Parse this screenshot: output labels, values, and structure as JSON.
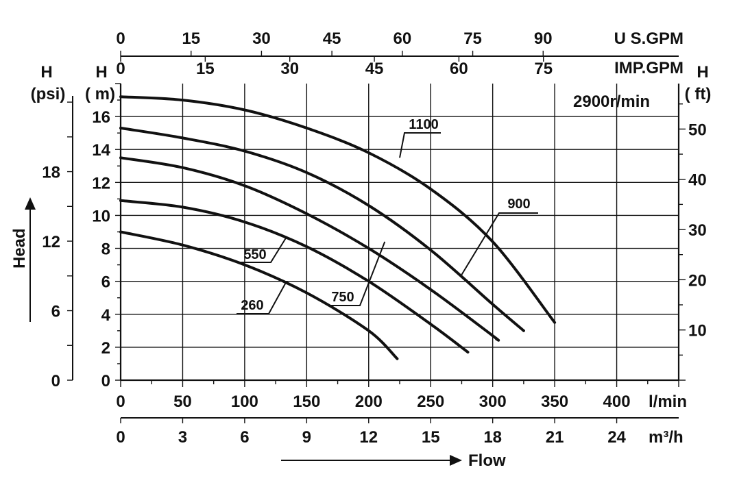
{
  "chart_data": {
    "type": "line",
    "title": "",
    "speed_label": "2900r/min",
    "axes": {
      "x_bottom_lmin": {
        "label": "l/min",
        "ticks": [
          0,
          50,
          100,
          150,
          200,
          250,
          300,
          350,
          400
        ],
        "range": [
          0,
          450
        ]
      },
      "x_bottom_m3h": {
        "label": "m³/h",
        "ticks": [
          0,
          3,
          6,
          9,
          12,
          15,
          18,
          21,
          24
        ],
        "range": [
          0,
          27
        ]
      },
      "x_top_usgpm": {
        "label": "U S.GPM",
        "ticks": [
          0,
          15,
          30,
          45,
          60,
          75,
          90
        ]
      },
      "x_top_impgpm": {
        "label": "IMP.GPM",
        "ticks": [
          0,
          15,
          30,
          45,
          60,
          75
        ]
      },
      "y_left_m": {
        "label_h": "H",
        "label_unit": "( m)",
        "ticks": [
          0,
          2,
          4,
          6,
          8,
          10,
          12,
          14,
          16
        ],
        "range": [
          0,
          18
        ]
      },
      "y_left_psi": {
        "label_h": "H",
        "label_unit": "(psi)",
        "ticks": [
          0,
          6,
          12,
          18
        ]
      },
      "y_right_ft": {
        "label_h": "H",
        "label_unit": "( ft)",
        "ticks": [
          10,
          20,
          30,
          40,
          50
        ]
      },
      "x_caption": "Flow",
      "y_caption": "Head"
    },
    "grid": true,
    "series": [
      {
        "name": "1100",
        "x": [
          0,
          50,
          100,
          150,
          200,
          250,
          300,
          350
        ],
        "y": [
          17.2,
          17.0,
          16.4,
          15.3,
          13.8,
          11.6,
          8.4,
          3.5
        ]
      },
      {
        "name": "900",
        "x": [
          0,
          50,
          100,
          150,
          200,
          250,
          300,
          325
        ],
        "y": [
          15.3,
          14.7,
          13.9,
          12.6,
          10.6,
          7.9,
          4.6,
          3.0
        ]
      },
      {
        "name": "750",
        "x": [
          0,
          50,
          100,
          150,
          200,
          250,
          300,
          303
        ],
        "y": [
          13.5,
          12.9,
          11.8,
          10.1,
          8.0,
          5.5,
          2.7,
          2.5
        ]
      },
      {
        "name": "550",
        "x": [
          0,
          50,
          100,
          150,
          200,
          250,
          280
        ],
        "y": [
          10.9,
          10.5,
          9.6,
          8.1,
          6.0,
          3.4,
          1.7
        ]
      },
      {
        "name": "260",
        "x": [
          0,
          50,
          100,
          150,
          200,
          223
        ],
        "y": [
          9.0,
          8.2,
          7.0,
          5.3,
          3.0,
          1.3
        ]
      }
    ]
  }
}
